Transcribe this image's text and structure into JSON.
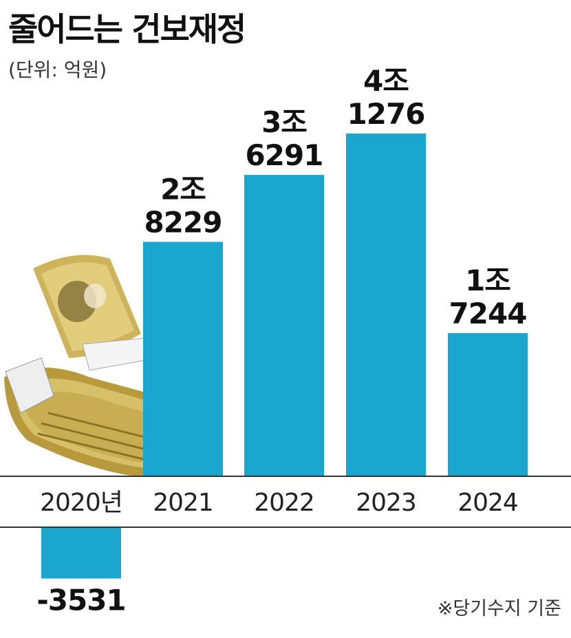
{
  "chart_data": {
    "type": "bar",
    "title": "줄어드는 건보재정",
    "unit_label": "(단위: 억원)",
    "note": "※당기수지 기준",
    "categories": [
      "2020년",
      "2021",
      "2022",
      "2023",
      "2024"
    ],
    "values": [
      -3531,
      28229,
      36291,
      41276,
      17244
    ],
    "value_labels": [
      [
        "-3531"
      ],
      [
        "2조",
        "8229"
      ],
      [
        "3조",
        "6291"
      ],
      [
        "4조",
        "1276"
      ],
      [
        "1조",
        "7244"
      ]
    ],
    "ylim": [
      -3531,
      41276
    ],
    "bar_color": "#1aa6cf",
    "illustration": "banknote-stack-icon"
  }
}
